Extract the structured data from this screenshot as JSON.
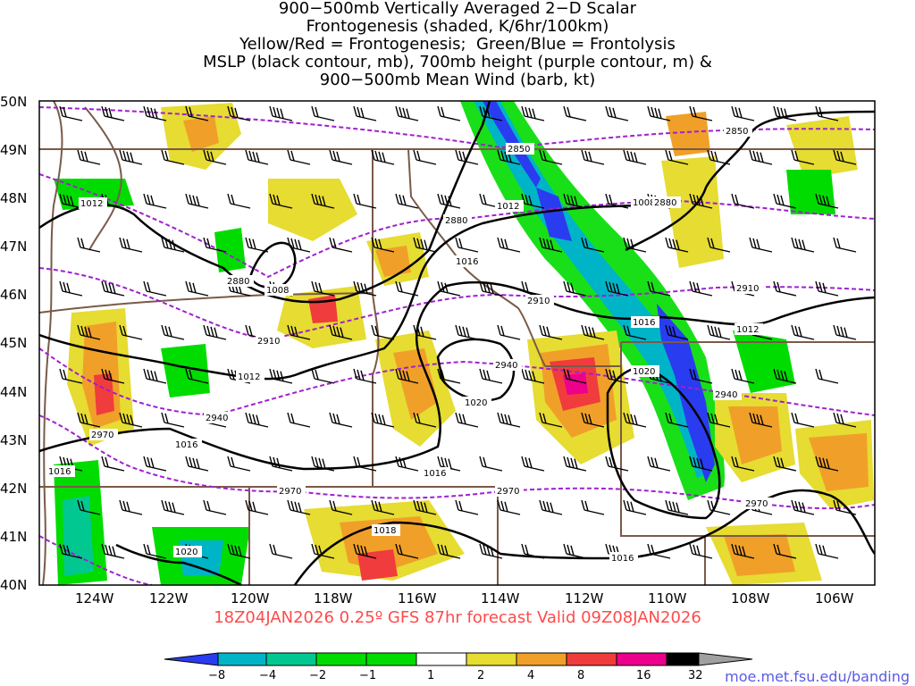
{
  "title": {
    "lines": [
      "900−500mb Vertically Averaged 2−D Scalar",
      "Frontogenesis (shaded, K/6hr/100km)",
      "Yellow/Red = Frontogenesis;  Green/Blue = Frontolysis",
      "MSLP (black contour, mb), 700mb height (purple contour, m) &",
      "900−500mb Mean Wind (barb, kt)"
    ]
  },
  "map": {
    "lat_labels": [
      "50N",
      "49N",
      "48N",
      "47N",
      "46N",
      "45N",
      "44N",
      "43N",
      "42N",
      "41N",
      "40N"
    ],
    "lon_labels": [
      "124W",
      "122W",
      "120W",
      "118W",
      "116W",
      "114W",
      "112W",
      "110W",
      "108W",
      "106W"
    ],
    "lon_range": [
      -125,
      -105
    ],
    "lat_range": [
      40,
      50
    ],
    "mslp_labels": [
      "1012",
      "1008",
      "1012",
      "1016",
      "1012",
      "1008",
      "1016",
      "1016",
      "1020",
      "1012",
      "1016",
      "1020",
      "1016",
      "1018",
      "1020",
      "1016"
    ],
    "height_labels": [
      "2850",
      "2880",
      "2880",
      "2850",
      "2880",
      "2910",
      "2910",
      "2910",
      "2940",
      "2940",
      "2940",
      "2970",
      "2970",
      "2970",
      "2970"
    ],
    "colors": {
      "mslp_contour": "#000000",
      "height_contour": "#a020d0",
      "border": "#7a5a48"
    }
  },
  "run_info": "18Z04JAN2026 0.25º GFS 87hr forecast Valid 09Z08JAN2026",
  "colorbar": {
    "ticks": [
      "−8",
      "−4",
      "−2",
      "−1",
      "1",
      "2",
      "4",
      "8",
      "16",
      "32"
    ],
    "colors": [
      "#2a3cf0",
      "#00b4c8",
      "#00c890",
      "#00dc00",
      "#ffffff",
      "#e6dc32",
      "#f0a028",
      "#f03c3c",
      "#ec008c",
      "#000000",
      "#a0a0a0"
    ]
  },
  "footer_url": "moe.met.fsu.edu/banding"
}
